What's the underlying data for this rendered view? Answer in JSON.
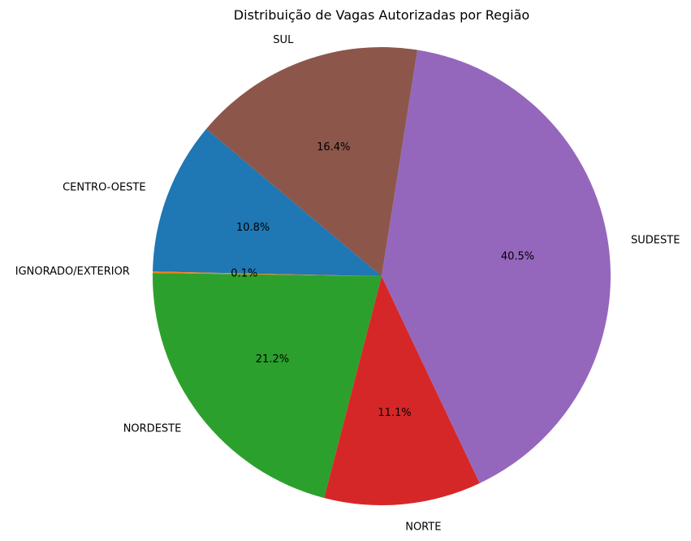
{
  "chart_data": {
    "type": "pie",
    "title": "Distribuição de Vagas Autorizadas por Região",
    "start_angle_deg": 140,
    "direction": "counterclockwise",
    "categories": [
      "CENTRO-OESTE",
      "IGNORADO/EXTERIOR",
      "NORDESTE",
      "NORTE",
      "SUDESTE",
      "SUL"
    ],
    "values": [
      10.8,
      0.1,
      21.2,
      11.1,
      40.5,
      16.4
    ],
    "percent_labels": [
      "10.8%",
      "0.1%",
      "21.2%",
      "11.1%",
      "40.5%",
      "16.4%"
    ],
    "colors": [
      "#1f77b4",
      "#ff7f0e",
      "#2ca02c",
      "#d62728",
      "#9467bd",
      "#8c564b"
    ]
  }
}
